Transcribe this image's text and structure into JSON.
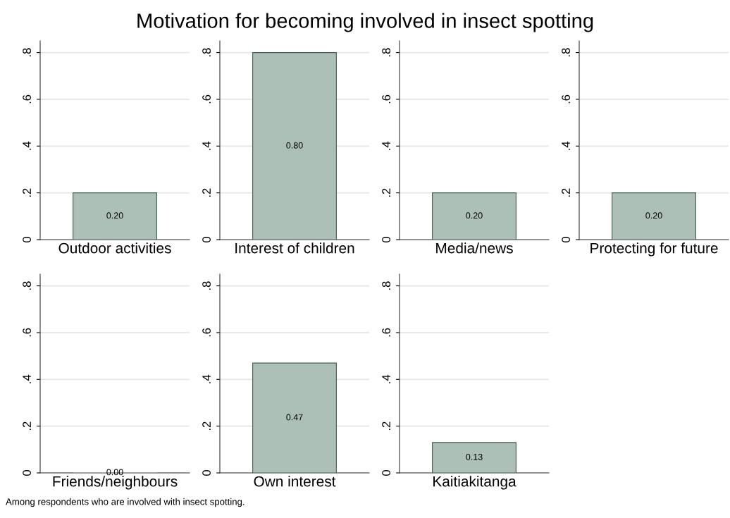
{
  "chart_data": [
    {
      "type": "bar",
      "title": "Motivation for becoming involved in insect spotting",
      "annotations": [
        "Among respondents who are involved with insect spotting."
      ],
      "categories": [
        "Outdoor activities"
      ],
      "values": [
        0.2
      ],
      "value_labels": [
        "0.20"
      ],
      "color": "#adc0b8",
      "ylim": [
        0,
        0.85
      ],
      "yticks": [
        0,
        {
          "value": 0.2,
          "label": ".2"
        },
        {
          "value": 0.4,
          "label": ".4"
        },
        {
          "value": 0.6,
          "label": ".6"
        },
        {
          "value": 0.8,
          "label": ".8"
        }
      ],
      "grid": "y"
    },
    {
      "type": "bar",
      "categories": [
        "Interest of children"
      ],
      "values": [
        0.8
      ],
      "value_labels": [
        "0.80"
      ],
      "color": "#adc0b8",
      "ylim": [
        0,
        0.85
      ],
      "yticks": [
        0,
        {
          "value": 0.2,
          "label": ".2"
        },
        {
          "value": 0.4,
          "label": ".4"
        },
        {
          "value": 0.6,
          "label": ".6"
        },
        {
          "value": 0.8,
          "label": ".8"
        }
      ],
      "grid": "y"
    },
    {
      "type": "bar",
      "categories": [
        "Media/news"
      ],
      "values": [
        0.2
      ],
      "value_labels": [
        "0.20"
      ],
      "color": "#adc0b8",
      "ylim": [
        0,
        0.85
      ],
      "yticks": [
        0,
        {
          "value": 0.2,
          "label": ".2"
        },
        {
          "value": 0.4,
          "label": ".4"
        },
        {
          "value": 0.6,
          "label": ".6"
        },
        {
          "value": 0.8,
          "label": ".8"
        }
      ],
      "grid": "y"
    },
    {
      "type": "bar",
      "categories": [
        "Protecting for future"
      ],
      "values": [
        0.2
      ],
      "value_labels": [
        "0.20"
      ],
      "color": "#adc0b8",
      "ylim": [
        0,
        0.85
      ],
      "yticks": [
        0,
        {
          "value": 0.2,
          "label": ".2"
        },
        {
          "value": 0.4,
          "label": ".4"
        },
        {
          "value": 0.6,
          "label": ".6"
        },
        {
          "value": 0.8,
          "label": ".8"
        }
      ],
      "grid": "y"
    },
    {
      "type": "bar",
      "categories": [
        "Friends/neighbours"
      ],
      "values": [
        0.0
      ],
      "value_labels": [
        "0.00"
      ],
      "color": "#adc0b8",
      "ylim": [
        0,
        0.85
      ],
      "yticks": [
        0,
        {
          "value": 0.2,
          "label": ".2"
        },
        {
          "value": 0.4,
          "label": ".4"
        },
        {
          "value": 0.6,
          "label": ".6"
        },
        {
          "value": 0.8,
          "label": ".8"
        }
      ],
      "grid": "y"
    },
    {
      "type": "bar",
      "categories": [
        "Own interest"
      ],
      "values": [
        0.47
      ],
      "value_labels": [
        "0.47"
      ],
      "color": "#adc0b8",
      "ylim": [
        0,
        0.85
      ],
      "yticks": [
        0,
        {
          "value": 0.2,
          "label": ".2"
        },
        {
          "value": 0.4,
          "label": ".4"
        },
        {
          "value": 0.6,
          "label": ".6"
        },
        {
          "value": 0.8,
          "label": ".8"
        }
      ],
      "grid": "y"
    },
    {
      "type": "bar",
      "categories": [
        "Kaitiakitanga"
      ],
      "values": [
        0.13
      ],
      "value_labels": [
        "0.13"
      ],
      "color": "#adc0b8",
      "ylim": [
        0,
        0.85
      ],
      "yticks": [
        0,
        {
          "value": 0.2,
          "label": ".2"
        },
        {
          "value": 0.4,
          "label": ".4"
        },
        {
          "value": 0.6,
          "label": ".6"
        },
        {
          "value": 0.8,
          "label": ".8"
        }
      ],
      "grid": "y"
    }
  ]
}
